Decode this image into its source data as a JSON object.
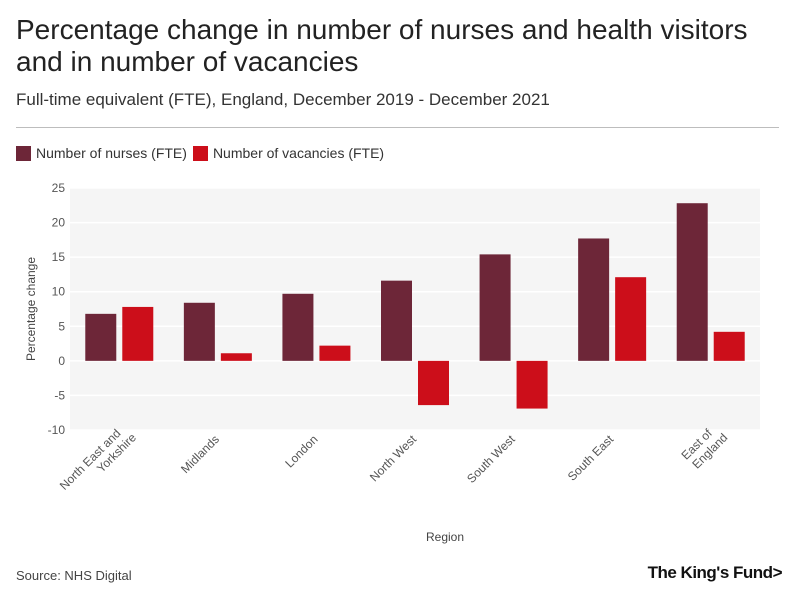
{
  "header": {
    "title": "Percentage change in number of nurses and health visitors and in number of vacancies",
    "subtitle": "Full-time equivalent (FTE), England, December 2019 - December 2021"
  },
  "footer": {
    "source": "Source: NHS Digital",
    "logo_text": "The King's Fund>"
  },
  "chart_data": {
    "type": "bar",
    "title": "Percentage change in number of nurses and health visitors and in number of vacancies",
    "subtitle": "Full-time equivalent (FTE), England, December 2019 - December 2021",
    "xlabel": "Region",
    "ylabel": "Percentage change",
    "ylim": [
      -10,
      25
    ],
    "yticks": [
      25,
      20,
      15,
      10,
      5,
      0,
      -5,
      -10
    ],
    "grid": true,
    "legend_position": "top-left",
    "categories": [
      "North East and Yorkshire",
      "Midlands",
      "London",
      "North West",
      "South West",
      "South East",
      "East of England"
    ],
    "category_lines": [
      [
        "North East and",
        "Yorkshire"
      ],
      [
        "Midlands"
      ],
      [
        "London"
      ],
      [
        "North West"
      ],
      [
        "South West"
      ],
      [
        "South East"
      ],
      [
        "East of",
        "England"
      ]
    ],
    "series": [
      {
        "name": "Number of nurses (FTE)",
        "color": "#6d2638",
        "values": [
          6.8,
          8.4,
          9.7,
          11.6,
          15.4,
          17.7,
          22.8
        ]
      },
      {
        "name": "Number of vacancies (FTE)",
        "color": "#cc0e1a",
        "values": [
          7.8,
          1.1,
          2.2,
          -6.4,
          -6.9,
          12.1,
          4.2
        ]
      }
    ]
  }
}
